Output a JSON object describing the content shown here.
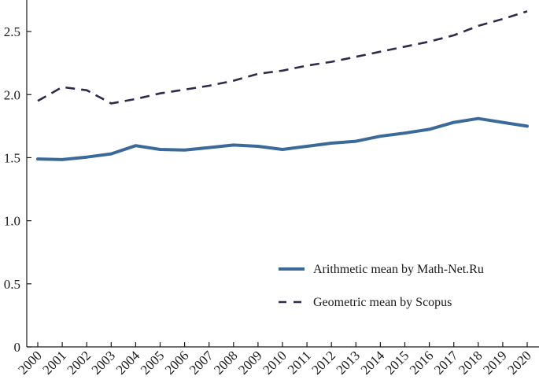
{
  "chart_data": {
    "type": "line",
    "title": "",
    "xlabel": "",
    "ylabel": "",
    "x": [
      "2000",
      "2001",
      "2002",
      "2003",
      "2004",
      "2005",
      "2006",
      "2007",
      "2008",
      "2009",
      "2010",
      "2011",
      "2012",
      "2013",
      "2014",
      "2015",
      "2016",
      "2017",
      "2018",
      "2019",
      "2020"
    ],
    "ylim": [
      0,
      2.75
    ],
    "yticks": [
      "0",
      "0.5",
      "1.0",
      "1.5",
      "2.0",
      "2.5"
    ],
    "grid": false,
    "legend_position": "lower-right",
    "series": [
      {
        "name": "Arithmetic mean by Math-Net.Ru",
        "style": "solid",
        "color": "#3b6a9a",
        "values": [
          1.49,
          1.485,
          1.505,
          1.53,
          1.595,
          1.565,
          1.56,
          1.58,
          1.6,
          1.59,
          1.565,
          1.59,
          1.615,
          1.63,
          1.67,
          1.695,
          1.725,
          1.78,
          1.81,
          1.78,
          1.75
        ]
      },
      {
        "name": "Geometric mean by Scopus",
        "style": "dashed",
        "color": "#2b2b4a",
        "values": [
          1.95,
          2.06,
          2.035,
          1.93,
          1.965,
          2.01,
          2.04,
          2.07,
          2.11,
          2.165,
          2.19,
          2.23,
          2.26,
          2.3,
          2.34,
          2.38,
          2.42,
          2.47,
          2.545,
          2.6,
          2.66
        ]
      }
    ]
  }
}
